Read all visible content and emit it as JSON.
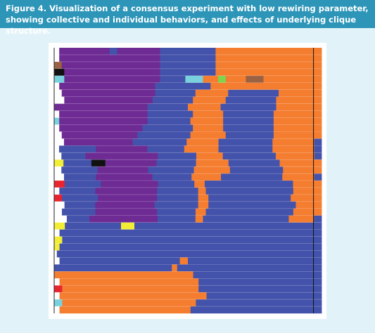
{
  "caption": "Figure 4. Visualization of a consensus experiment with low rewiring parameter, showing collective and individual behaviors, and effects of underlying clique structure.",
  "colors": {
    "caption_bar": "#2d95b8",
    "page_background": "#e1f3f8",
    "purple": "#6e2b94",
    "blue": "#4352aa",
    "orange": "#f47d30",
    "cyan": "#79d1dd",
    "yellow": "#f2ee35",
    "red": "#e8242e",
    "brown": "#9a6142",
    "black": "#111111",
    "green": "#7ed54d",
    "white": "#ffffff"
  },
  "rows": [
    [
      [
        "white",
        2
      ],
      [
        "purple",
        20
      ],
      [
        "blue",
        3
      ],
      [
        "purple",
        17
      ],
      [
        "blue",
        22
      ],
      [
        "orange",
        42
      ]
    ],
    [
      [
        "white",
        2
      ],
      [
        "purple",
        40
      ],
      [
        "blue",
        22
      ],
      [
        "orange",
        42
      ]
    ],
    [
      [
        "brown",
        3
      ],
      [
        "purple",
        39
      ],
      [
        "blue",
        22
      ],
      [
        "orange",
        42
      ]
    ],
    [
      [
        "black",
        4
      ],
      [
        "purple",
        38
      ],
      [
        "blue",
        22
      ],
      [
        "orange",
        42
      ]
    ],
    [
      [
        "cyan",
        4
      ],
      [
        "purple",
        38
      ],
      [
        "blue",
        10
      ],
      [
        "cyan",
        7
      ],
      [
        "orange",
        6
      ],
      [
        "green",
        3
      ],
      [
        "orange",
        8
      ],
      [
        "brown",
        7
      ],
      [
        "orange",
        23
      ]
    ],
    [
      [
        "white",
        2
      ],
      [
        "purple",
        38
      ],
      [
        "blue",
        22
      ],
      [
        "orange",
        44
      ]
    ],
    [
      [
        "white",
        3
      ],
      [
        "purple",
        37
      ],
      [
        "blue",
        16
      ],
      [
        "orange",
        13
      ],
      [
        "blue",
        20
      ],
      [
        "orange",
        17
      ]
    ],
    [
      [
        "white",
        4
      ],
      [
        "purple",
        35
      ],
      [
        "blue",
        16
      ],
      [
        "orange",
        13
      ],
      [
        "blue",
        20
      ],
      [
        "orange",
        18
      ]
    ],
    [
      [
        "purple",
        37
      ],
      [
        "blue",
        16
      ],
      [
        "orange",
        13
      ],
      [
        "blue",
        22
      ],
      [
        "orange",
        18
      ]
    ],
    [
      [
        "white",
        2
      ],
      [
        "purple",
        35
      ],
      [
        "blue",
        18
      ],
      [
        "orange",
        12
      ],
      [
        "blue",
        20
      ],
      [
        "orange",
        19
      ]
    ],
    [
      [
        "cyan",
        2
      ],
      [
        "purple",
        35
      ],
      [
        "blue",
        17
      ],
      [
        "orange",
        13
      ],
      [
        "blue",
        20
      ],
      [
        "orange",
        19
      ]
    ],
    [
      [
        "white",
        2
      ],
      [
        "purple",
        33
      ],
      [
        "blue",
        20
      ],
      [
        "orange",
        12
      ],
      [
        "blue",
        20
      ],
      [
        "orange",
        19
      ]
    ],
    [
      [
        "white",
        3
      ],
      [
        "purple",
        30
      ],
      [
        "blue",
        21
      ],
      [
        "orange",
        14
      ],
      [
        "blue",
        19
      ],
      [
        "orange",
        19
      ]
    ],
    [
      [
        "white",
        4
      ],
      [
        "purple",
        28
      ],
      [
        "blue",
        22
      ],
      [
        "orange",
        13
      ],
      [
        "blue",
        22
      ],
      [
        "orange",
        17
      ],
      [
        "blue",
        3
      ]
    ],
    [
      [
        "white",
        2
      ],
      [
        "blue",
        15
      ],
      [
        "purple",
        21
      ],
      [
        "blue",
        15
      ],
      [
        "orange",
        14
      ],
      [
        "blue",
        22
      ],
      [
        "orange",
        17
      ],
      [
        "blue",
        3
      ]
    ],
    [
      [
        "white",
        3
      ],
      [
        "blue",
        10
      ],
      [
        "purple",
        30
      ],
      [
        "blue",
        16
      ],
      [
        "orange",
        11
      ],
      [
        "blue",
        22
      ],
      [
        "orange",
        16
      ],
      [
        "blue",
        3
      ]
    ],
    [
      [
        "yellow",
        4
      ],
      [
        "blue",
        12
      ],
      [
        "black",
        6
      ],
      [
        "purple",
        22
      ],
      [
        "blue",
        17
      ],
      [
        "orange",
        14
      ],
      [
        "blue",
        22
      ],
      [
        "orange",
        18
      ]
    ],
    [
      [
        "white",
        3
      ],
      [
        "blue",
        15
      ],
      [
        "purple",
        21
      ],
      [
        "blue",
        19
      ],
      [
        "orange",
        15
      ],
      [
        "blue",
        22
      ],
      [
        "orange",
        16
      ]
    ],
    [
      [
        "white",
        4
      ],
      [
        "blue",
        13
      ],
      [
        "purple",
        23
      ],
      [
        "blue",
        16
      ],
      [
        "orange",
        12
      ],
      [
        "blue",
        25
      ],
      [
        "orange",
        13
      ],
      [
        "blue",
        3
      ]
    ],
    [
      [
        "red",
        4
      ],
      [
        "blue",
        14
      ],
      [
        "purple",
        22
      ],
      [
        "blue",
        14
      ],
      [
        "orange",
        4
      ],
      [
        "blue",
        34
      ],
      [
        "orange",
        11
      ]
    ],
    [
      [
        "white",
        2
      ],
      [
        "blue",
        14
      ],
      [
        "purple",
        24
      ],
      [
        "blue",
        16
      ],
      [
        "orange",
        3
      ],
      [
        "blue",
        34
      ],
      [
        "orange",
        11
      ]
    ],
    [
      [
        "red",
        3
      ],
      [
        "blue",
        14
      ],
      [
        "purple",
        23
      ],
      [
        "blue",
        16
      ],
      [
        "orange",
        4
      ],
      [
        "blue",
        32
      ],
      [
        "orange",
        12
      ]
    ],
    [
      [
        "white",
        4
      ],
      [
        "blue",
        12
      ],
      [
        "purple",
        23
      ],
      [
        "blue",
        17
      ],
      [
        "orange",
        4
      ],
      [
        "blue",
        34
      ],
      [
        "orange",
        10
      ]
    ],
    [
      [
        "white",
        3
      ],
      [
        "blue",
        13
      ],
      [
        "purple",
        24
      ],
      [
        "blue",
        15
      ],
      [
        "orange",
        4
      ],
      [
        "blue",
        34
      ],
      [
        "orange",
        11
      ]
    ],
    [
      [
        "white",
        5
      ],
      [
        "blue",
        9
      ],
      [
        "purple",
        27
      ],
      [
        "blue",
        15
      ],
      [
        "orange",
        3
      ],
      [
        "blue",
        34
      ],
      [
        "orange",
        10
      ],
      [
        "blue",
        3
      ]
    ],
    [
      [
        "yellow",
        4
      ],
      [
        "blue",
        21
      ],
      [
        "yellow",
        5
      ],
      [
        "blue",
        12
      ],
      [
        "blue",
        58
      ]
    ],
    [
      [
        "white",
        2
      ],
      [
        "blue",
        98
      ]
    ],
    [
      [
        "yellow",
        3
      ],
      [
        "blue",
        97
      ]
    ],
    [
      [
        "yellow",
        2
      ],
      [
        "blue",
        98
      ]
    ],
    [
      [
        "white",
        1
      ],
      [
        "blue",
        99
      ]
    ],
    [
      [
        "white",
        2
      ],
      [
        "blue",
        45
      ],
      [
        "orange",
        3
      ],
      [
        "blue",
        50
      ]
    ],
    [
      [
        "blue",
        44
      ],
      [
        "orange",
        2
      ],
      [
        "blue",
        54
      ]
    ],
    [
      [
        "orange",
        52
      ],
      [
        "blue",
        48
      ]
    ],
    [
      [
        "white",
        2
      ],
      [
        "orange",
        52
      ],
      [
        "blue",
        46
      ]
    ],
    [
      [
        "red",
        3
      ],
      [
        "orange",
        51
      ],
      [
        "blue",
        46
      ]
    ],
    [
      [
        "white",
        2
      ],
      [
        "orange",
        55
      ],
      [
        "blue",
        43
      ]
    ],
    [
      [
        "cyan",
        3
      ],
      [
        "orange",
        50
      ],
      [
        "blue",
        47
      ]
    ],
    [
      [
        "white",
        2
      ],
      [
        "orange",
        49
      ],
      [
        "blue",
        49
      ]
    ]
  ]
}
